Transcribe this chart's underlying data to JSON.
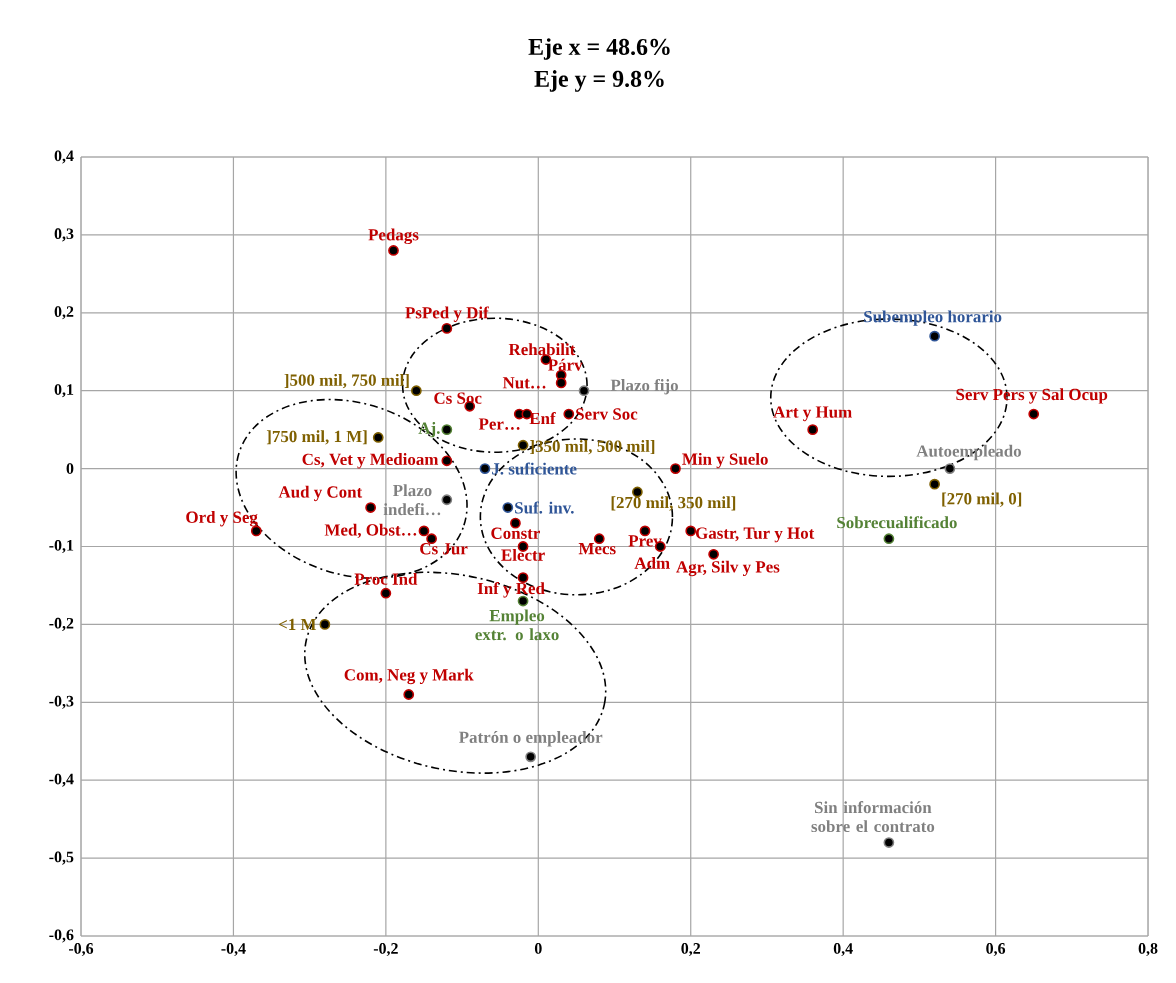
{
  "chart_data": {
    "type": "scatter",
    "title": "Eje x = 48.6%",
    "subtitle": "Eje  y = 9.8%",
    "marker": "circle",
    "grid": true,
    "xlim": [
      -0.6,
      0.8
    ],
    "ylim": [
      -0.6,
      0.4
    ],
    "xticks": [
      {
        "value": -0.6,
        "label": "-0,6"
      },
      {
        "value": -0.4,
        "label": "-0,4"
      },
      {
        "value": -0.2,
        "label": "-0,2"
      },
      0,
      {
        "value": 0.2,
        "label": "0,2"
      },
      {
        "value": 0.4,
        "label": "0,4"
      },
      {
        "value": 0.6,
        "label": "0,6"
      },
      {
        "value": 0.8,
        "label": "0,8"
      }
    ],
    "yticks": [
      {
        "value": -0.6,
        "label": "-0,6"
      },
      {
        "value": -0.5,
        "label": "-0,5"
      },
      {
        "value": -0.4,
        "label": "-0,4"
      },
      {
        "value": -0.3,
        "label": "-0,3"
      },
      {
        "value": -0.2,
        "label": "-0,2"
      },
      {
        "value": -0.1,
        "label": "-0,1"
      },
      0,
      {
        "value": 0.1,
        "label": "0,1"
      },
      {
        "value": 0.2,
        "label": "0,2"
      },
      {
        "value": 0.3,
        "label": "0,3"
      },
      {
        "value": 0.4,
        "label": "0,4"
      }
    ],
    "series": [
      {
        "color": "#c00000",
        "x": [
          -0.19,
          -0.12,
          0.01,
          0.03,
          0.03,
          -0.09,
          -0.025,
          -0.015,
          0.04,
          -0.12,
          -0.22,
          -0.37,
          -0.15,
          -0.14,
          -0.03,
          -0.02,
          0.08,
          0.14,
          0.16,
          0.2,
          0.23,
          -0.02,
          0.18,
          -0.2,
          -0.17,
          0.36,
          0.65
        ],
        "values": [
          0.28,
          0.18,
          0.14,
          0.12,
          0.11,
          0.08,
          0.07,
          0.07,
          0.07,
          0.01,
          -0.05,
          -0.08,
          -0.08,
          -0.09,
          -0.07,
          -0.1,
          -0.09,
          -0.08,
          -0.1,
          -0.08,
          -0.11,
          -0.14,
          0.0,
          -0.16,
          -0.29,
          0.05,
          0.07
        ]
      },
      {
        "color": "#7f6000",
        "x": [
          -0.16,
          -0.21,
          -0.02,
          0.13,
          -0.28,
          0.52
        ],
        "values": [
          0.1,
          0.04,
          0.03,
          -0.03,
          -0.2,
          -0.02
        ]
      },
      {
        "color": "#808080",
        "x": [
          0.06,
          -0.12,
          -0.01,
          0.46,
          0.54
        ],
        "values": [
          0.1,
          -0.04,
          -0.37,
          -0.48,
          0.0
        ]
      },
      {
        "color": "#2f5597",
        "x": [
          -0.07,
          -0.04,
          0.52
        ],
        "values": [
          0.0,
          -0.05,
          0.17
        ]
      },
      {
        "color": "#548235",
        "x": [
          -0.12,
          -0.02,
          0.46
        ],
        "values": [
          0.05,
          -0.17,
          -0.09
        ]
      }
    ],
    "annotations": [
      {
        "text": "Pedags",
        "x": -0.19,
        "y": 0.28
      },
      {
        "text": "PsPed y Dif",
        "x": -0.12,
        "y": 0.18
      },
      {
        "text": "Rehabilit",
        "x": 0.01,
        "y": 0.14
      },
      {
        "text": "Párv",
        "x": 0.03,
        "y": 0.12
      },
      {
        "text": "Nut…",
        "x": 0.03,
        "y": 0.11
      },
      {
        "text": "Plazo fijo",
        "x": 0.06,
        "y": 0.1
      },
      {
        "text": "]500 mil, 750 mil]",
        "x": -0.16,
        "y": 0.1
      },
      {
        "text": "Cs Soc",
        "x": -0.09,
        "y": 0.08
      },
      {
        "text": "Per…",
        "x": -0.025,
        "y": 0.07
      },
      {
        "text": "Enf",
        "x": -0.015,
        "y": 0.07
      },
      {
        "text": "Serv Soc",
        "x": 0.04,
        "y": 0.07
      },
      {
        "text": "Aj.",
        "x": -0.12,
        "y": 0.05
      },
      {
        "text": "]750 mil, 1 M]",
        "x": -0.21,
        "y": 0.04
      },
      {
        "text": "]350 mil, 500 mil]",
        "x": -0.02,
        "y": 0.03
      },
      {
        "text": "Cs, Vet y Medioam",
        "x": -0.12,
        "y": 0.01
      },
      {
        "text": "J. suficiente",
        "x": -0.07,
        "y": 0.0
      },
      {
        "text": "Plazo indefi…",
        "x": -0.12,
        "y": -0.04
      },
      {
        "text": "Aud y Cont",
        "x": -0.22,
        "y": -0.05
      },
      {
        "text": "Suf. inv.",
        "x": -0.04,
        "y": -0.05
      },
      {
        "text": "[270 mil, 350 mil]",
        "x": 0.13,
        "y": -0.03
      },
      {
        "text": "Ord y Seg",
        "x": -0.37,
        "y": -0.08
      },
      {
        "text": "Med, Obst…",
        "x": -0.15,
        "y": -0.08
      },
      {
        "text": "Cs Jur",
        "x": -0.14,
        "y": -0.09
      },
      {
        "text": "Constr",
        "x": -0.03,
        "y": -0.07
      },
      {
        "text": "Electr",
        "x": -0.02,
        "y": -0.1
      },
      {
        "text": "Mecs",
        "x": 0.08,
        "y": -0.09
      },
      {
        "text": "Prev",
        "x": 0.14,
        "y": -0.08
      },
      {
        "text": "Adm",
        "x": 0.16,
        "y": -0.1
      },
      {
        "text": "Gastr, Tur y Hot",
        "x": 0.2,
        "y": -0.08
      },
      {
        "text": "Agr, Silv y Pes",
        "x": 0.23,
        "y": -0.11
      },
      {
        "text": "Inf y Red",
        "x": -0.02,
        "y": -0.14
      },
      {
        "text": "Min y Suelo",
        "x": 0.18,
        "y": 0.0
      },
      {
        "text": "Proc Ind",
        "x": -0.2,
        "y": -0.16
      },
      {
        "text": "Empleo extr. o laxo",
        "x": -0.02,
        "y": -0.17
      },
      {
        "text": "<1 M",
        "x": -0.28,
        "y": -0.2
      },
      {
        "text": "Com, Neg y Mark",
        "x": -0.17,
        "y": -0.29
      },
      {
        "text": "Patrón o empleador",
        "x": -0.01,
        "y": -0.37
      },
      {
        "text": "Sin información sobre el contrato",
        "x": 0.46,
        "y": -0.48
      },
      {
        "text": "Subempleo horario",
        "x": 0.52,
        "y": 0.17
      },
      {
        "text": "Serv Pers y Sal Ocup",
        "x": 0.65,
        "y": 0.07
      },
      {
        "text": "Art y Hum",
        "x": 0.36,
        "y": 0.05
      },
      {
        "text": "Autoempleado",
        "x": 0.54,
        "y": 0.0
      },
      {
        "text": "[270 mil, 0]",
        "x": 0.52,
        "y": -0.02
      },
      {
        "text": "Sobrecualificado",
        "x": 0.46,
        "y": -0.09
      }
    ]
  }
}
